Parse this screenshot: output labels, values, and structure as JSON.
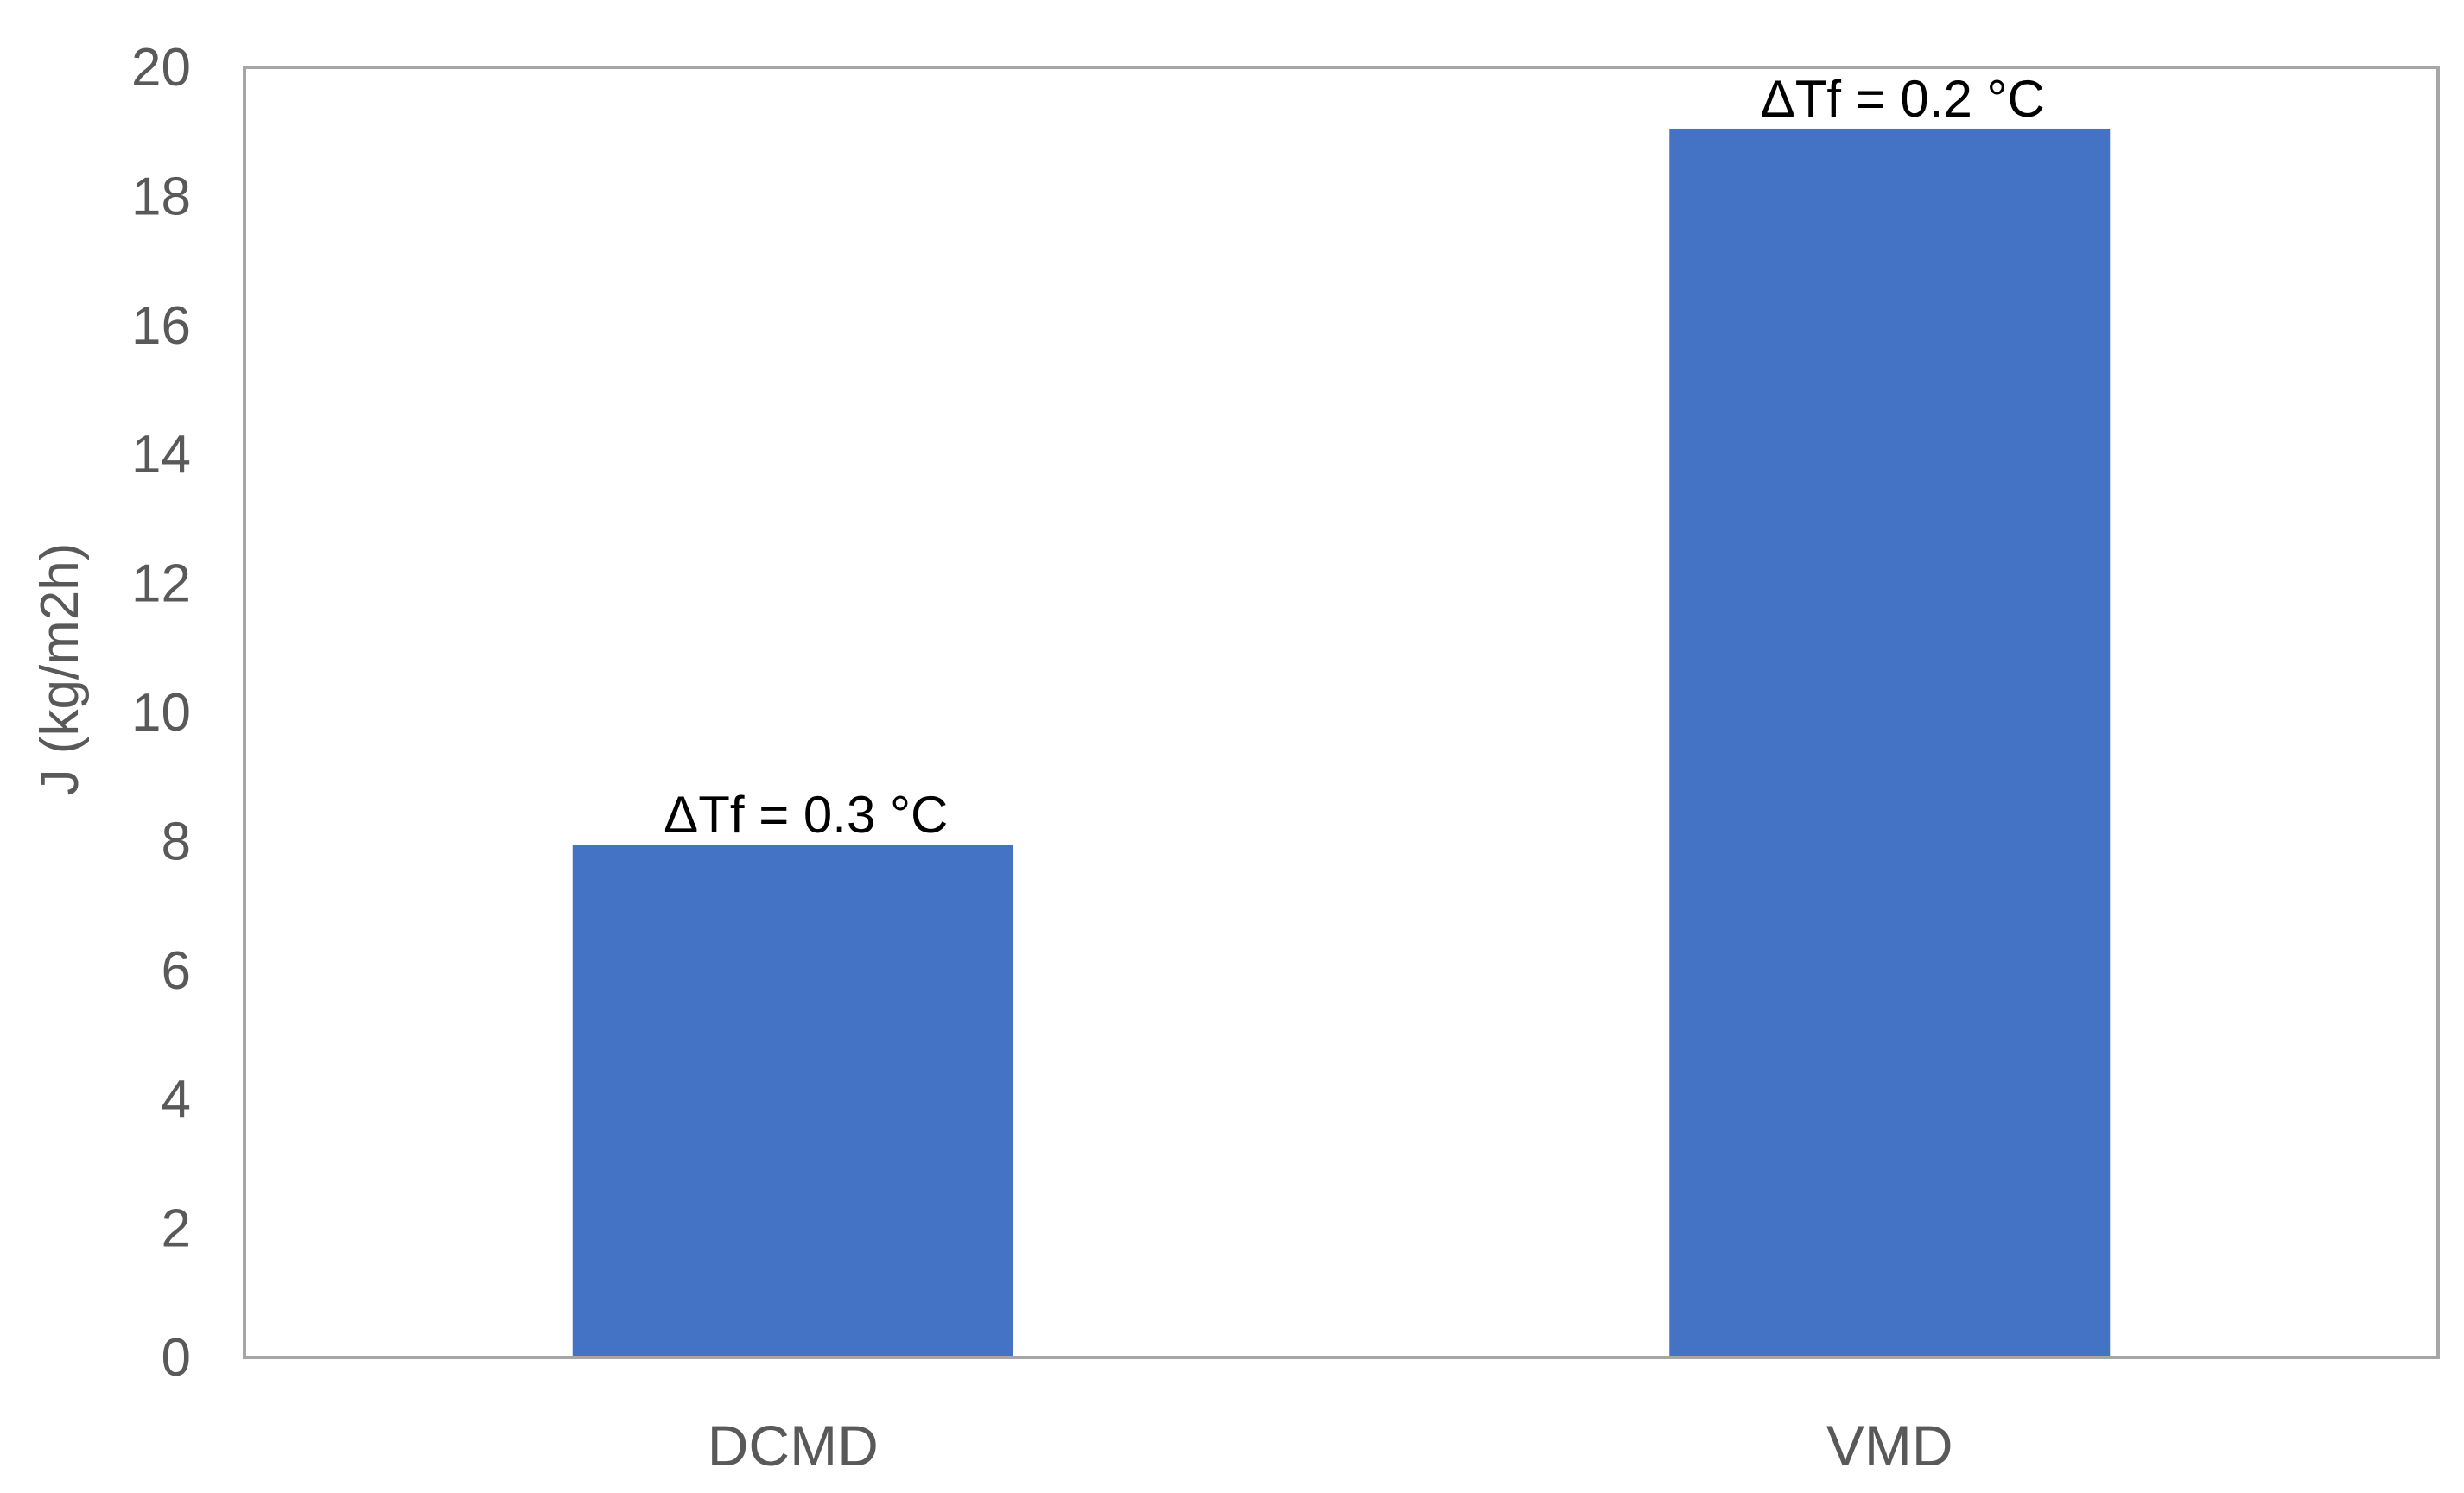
{
  "chart_data": {
    "type": "bar",
    "categories": [
      "DCMD",
      "VMD"
    ],
    "values": [
      7.95,
      19.05
    ],
    "data_labels": [
      "ΔTf = 0.3 °C",
      "ΔTf = 0.2 °C"
    ],
    "title": "",
    "xlabel": "",
    "ylabel": "J (kg/m2h)",
    "ylim": [
      0,
      20
    ],
    "yticks": [
      0,
      2,
      4,
      6,
      8,
      10,
      12,
      14,
      16,
      18,
      20
    ],
    "grid": false,
    "legend": "none",
    "bar_color": "#4472C4",
    "frame_color": "#A6A6A6",
    "text_color": "#595959"
  }
}
